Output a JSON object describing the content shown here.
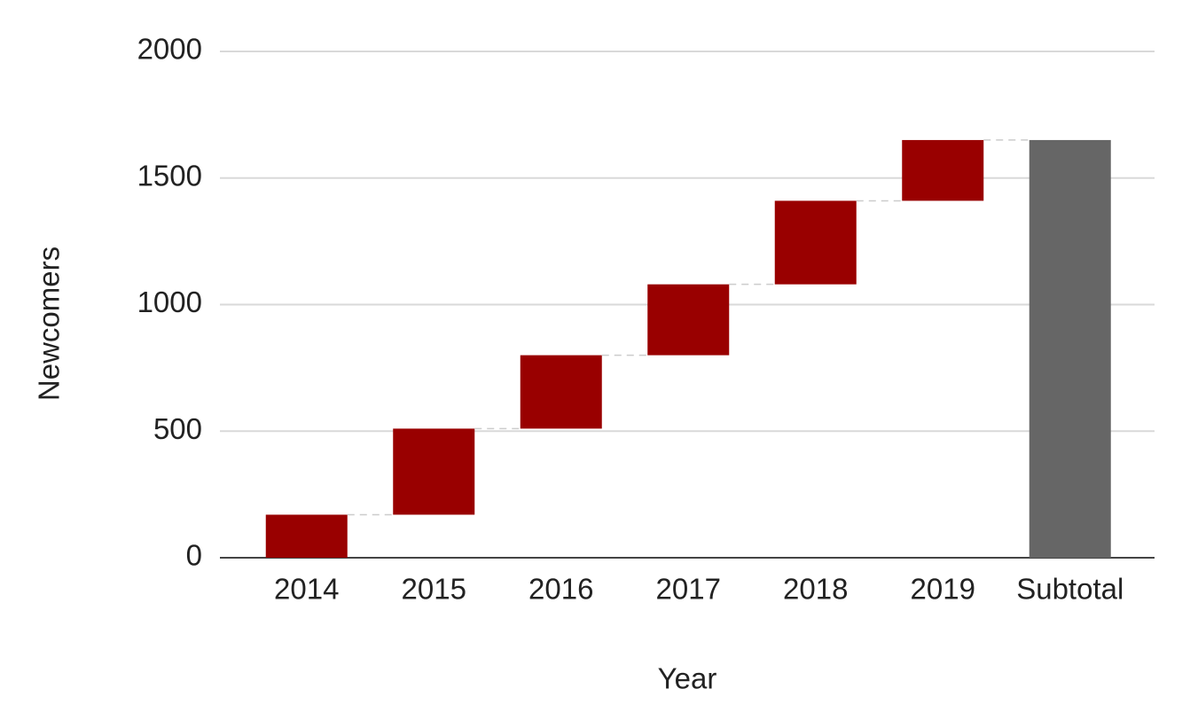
{
  "chart_data": {
    "type": "waterfall",
    "x_label": "Year",
    "y_label": "Newcomers",
    "categories": [
      "2014",
      "2015",
      "2016",
      "2017",
      "2018",
      "2019",
      "Subtotal"
    ],
    "values": [
      170,
      340,
      290,
      280,
      330,
      240,
      1650
    ],
    "is_total": [
      false,
      false,
      false,
      false,
      false,
      false,
      true
    ],
    "colors": [
      "#990000",
      "#990000",
      "#990000",
      "#990000",
      "#990000",
      "#990000",
      "#666666"
    ],
    "ylim": [
      0,
      2000
    ],
    "yticks": [
      0,
      500,
      1000,
      1500,
      2000
    ],
    "grid": true
  }
}
